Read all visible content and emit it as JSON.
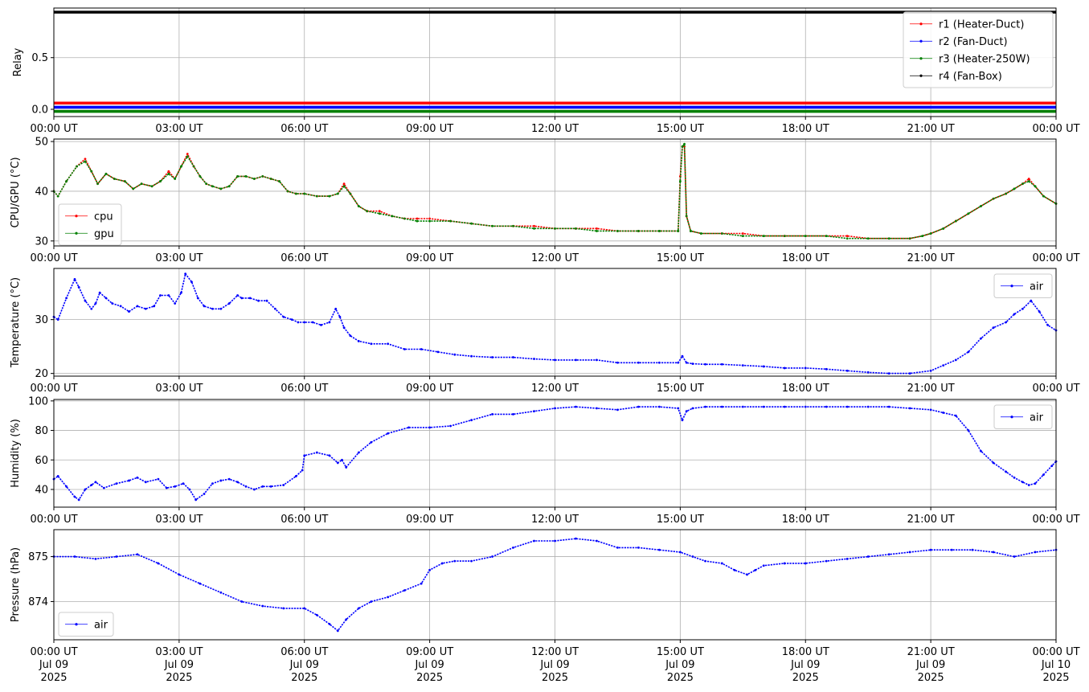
{
  "chart_data": [
    {
      "type": "line",
      "ylabel": "Relay",
      "xlabel": "",
      "xlim": [
        0,
        24
      ],
      "ylim": [
        -0.07,
        0.98
      ],
      "grid": true,
      "legend_position": "top-right",
      "x_tick_labels": [
        "00:00 UT",
        "03:00 UT",
        "06:00 UT",
        "09:00 UT",
        "12:00 UT",
        "15:00 UT",
        "18:00 UT",
        "21:00 UT",
        "00:00 UT"
      ],
      "y_ticks": [
        0.0,
        0.5
      ],
      "y_tick_labels": [
        "0.0",
        "0.5"
      ],
      "series": [
        {
          "name": "r1 (Heater-Duct)",
          "color": "#ff0000",
          "x": [
            0,
            24
          ],
          "y": [
            0.06,
            0.06
          ]
        },
        {
          "name": "r2 (Fan-Duct)",
          "color": "#0000ff",
          "x": [
            0,
            24
          ],
          "y": [
            0.02,
            0.02
          ]
        },
        {
          "name": "r3 (Heater-250W)",
          "color": "#008000",
          "x": [
            0,
            24
          ],
          "y": [
            -0.02,
            -0.02
          ]
        },
        {
          "name": "r4 (Fan-Box)",
          "color": "#000000",
          "x": [
            0,
            24
          ],
          "y": [
            0.94,
            0.94
          ]
        }
      ]
    },
    {
      "type": "line",
      "ylabel": "CPU/GPU (°C)",
      "xlabel": "",
      "xlim": [
        0,
        24
      ],
      "ylim": [
        29,
        50.5
      ],
      "grid": true,
      "legend_position": "bottom-left",
      "x_tick_labels": [
        "00:00 UT",
        "03:00 UT",
        "06:00 UT",
        "09:00 UT",
        "12:00 UT",
        "15:00 UT",
        "18:00 UT",
        "21:00 UT",
        "00:00 UT"
      ],
      "y_ticks": [
        30,
        40,
        50
      ],
      "y_tick_labels": [
        "30",
        "40",
        "50"
      ],
      "series": [
        {
          "name": "cpu",
          "color": "#ff0000",
          "x": [
            0,
            0.1,
            0.3,
            0.55,
            0.75,
            0.9,
            1.05,
            1.25,
            1.45,
            1.7,
            1.9,
            2.1,
            2.35,
            2.55,
            2.75,
            2.9,
            3.05,
            3.2,
            3.35,
            3.5,
            3.65,
            3.8,
            4.0,
            4.2,
            4.4,
            4.6,
            4.8,
            5.0,
            5.2,
            5.4,
            5.6,
            5.8,
            6.0,
            6.3,
            6.6,
            6.8,
            6.95,
            7.1,
            7.3,
            7.5,
            7.8,
            8.1,
            8.4,
            8.7,
            9.0,
            9.5,
            10.0,
            10.5,
            11.0,
            11.5,
            12.0,
            12.5,
            13.0,
            13.5,
            14.0,
            14.5,
            14.95,
            15.0,
            15.05,
            15.1,
            15.15,
            15.25,
            15.5,
            16.0,
            16.5,
            17.0,
            17.5,
            18.0,
            18.5,
            19.0,
            19.5,
            20.0,
            20.5,
            20.8,
            21.0,
            21.3,
            21.6,
            21.9,
            22.2,
            22.5,
            22.8,
            23.0,
            23.2,
            23.35,
            23.5,
            23.7,
            24.0
          ],
          "y": [
            40,
            39,
            42,
            45,
            46.5,
            44,
            41.5,
            43.5,
            42.5,
            42,
            40.5,
            41.5,
            41,
            42,
            44,
            42.5,
            45,
            47.5,
            45,
            43,
            41.5,
            41,
            40.5,
            41,
            43,
            43,
            42.5,
            43,
            42.5,
            42,
            40,
            39.5,
            39.5,
            39,
            39,
            39.5,
            41.5,
            39.5,
            37,
            36,
            36,
            35,
            34.5,
            34.5,
            34.5,
            34,
            33.5,
            33,
            33,
            33,
            32.5,
            32.5,
            32.5,
            32,
            32,
            32,
            32,
            43,
            49,
            49,
            35,
            32,
            31.5,
            31.5,
            31.5,
            31,
            31,
            31,
            31,
            31,
            30.5,
            30.5,
            30.5,
            31,
            31.5,
            32.5,
            34,
            35.5,
            37,
            38.5,
            39.5,
            40.5,
            41.5,
            42.5,
            41,
            39,
            37.5
          ]
        },
        {
          "name": "gpu",
          "color": "#008000",
          "x": [
            0,
            0.1,
            0.3,
            0.55,
            0.75,
            0.9,
            1.05,
            1.25,
            1.45,
            1.7,
            1.9,
            2.1,
            2.35,
            2.55,
            2.75,
            2.9,
            3.05,
            3.2,
            3.35,
            3.5,
            3.65,
            3.8,
            4.0,
            4.2,
            4.4,
            4.6,
            4.8,
            5.0,
            5.2,
            5.4,
            5.6,
            5.8,
            6.0,
            6.3,
            6.6,
            6.8,
            6.95,
            7.1,
            7.3,
            7.5,
            7.8,
            8.1,
            8.4,
            8.7,
            9.0,
            9.5,
            10.0,
            10.5,
            11.0,
            11.5,
            12.0,
            12.5,
            13.0,
            13.5,
            14.0,
            14.5,
            14.95,
            15.0,
            15.05,
            15.1,
            15.15,
            15.25,
            15.5,
            16.0,
            16.5,
            17.0,
            17.5,
            18.0,
            18.5,
            19.0,
            19.5,
            20.0,
            20.5,
            20.8,
            21.0,
            21.3,
            21.6,
            21.9,
            22.2,
            22.5,
            22.8,
            23.0,
            23.2,
            23.35,
            23.5,
            23.7,
            24.0
          ],
          "y": [
            40,
            39,
            42,
            45,
            46,
            44,
            41.5,
            43.5,
            42.5,
            42,
            40.5,
            41.5,
            41,
            42,
            43.5,
            42.5,
            45,
            47,
            45,
            43,
            41.5,
            41,
            40.5,
            41,
            43,
            43,
            42.5,
            43,
            42.5,
            42,
            40,
            39.5,
            39.5,
            39,
            39,
            39.5,
            41,
            39.5,
            37,
            36,
            35.5,
            35,
            34.5,
            34,
            34,
            34,
            33.5,
            33,
            33,
            32.5,
            32.5,
            32.5,
            32,
            32,
            32,
            32,
            32,
            42,
            49,
            49.5,
            35,
            32,
            31.5,
            31.5,
            31,
            31,
            31,
            31,
            31,
            30.5,
            30.5,
            30.5,
            30.5,
            31,
            31.5,
            32.5,
            34,
            35.5,
            37,
            38.5,
            39.5,
            40.5,
            41.5,
            42,
            41,
            39,
            37.5
          ]
        }
      ]
    },
    {
      "type": "line",
      "ylabel": "Temperature (°C)",
      "xlabel": "",
      "xlim": [
        0,
        24
      ],
      "ylim": [
        19.5,
        39.5
      ],
      "grid": true,
      "legend_position": "top-right",
      "x_tick_labels": [
        "00:00 UT",
        "03:00 UT",
        "06:00 UT",
        "09:00 UT",
        "12:00 UT",
        "15:00 UT",
        "18:00 UT",
        "21:00 UT",
        "00:00 UT"
      ],
      "y_ticks": [
        20,
        30
      ],
      "y_tick_labels": [
        "20",
        "30"
      ],
      "series": [
        {
          "name": "air",
          "color": "#0000ff",
          "x": [
            0,
            0.1,
            0.3,
            0.5,
            0.6,
            0.75,
            0.9,
            1.0,
            1.1,
            1.25,
            1.4,
            1.6,
            1.8,
            2.0,
            2.2,
            2.4,
            2.55,
            2.75,
            2.9,
            3.05,
            3.15,
            3.3,
            3.45,
            3.6,
            3.8,
            4.0,
            4.2,
            4.4,
            4.5,
            4.7,
            4.9,
            5.1,
            5.3,
            5.5,
            5.7,
            5.85,
            6.0,
            6.2,
            6.4,
            6.6,
            6.75,
            6.85,
            6.95,
            7.1,
            7.3,
            7.6,
            8.0,
            8.4,
            8.8,
            9.2,
            9.6,
            10.0,
            10.5,
            11.0,
            11.5,
            12.0,
            12.5,
            13.0,
            13.5,
            14.0,
            14.5,
            14.95,
            15.05,
            15.15,
            15.3,
            15.6,
            16.0,
            16.5,
            17.0,
            17.5,
            18.0,
            18.5,
            19.0,
            19.5,
            20.0,
            20.5,
            21.0,
            21.3,
            21.6,
            21.9,
            22.2,
            22.5,
            22.8,
            23.0,
            23.2,
            23.4,
            23.6,
            23.8,
            24.0
          ],
          "y": [
            30.5,
            30,
            34,
            37.5,
            36,
            33.5,
            32,
            33,
            35,
            34,
            33,
            32.5,
            31.5,
            32.5,
            32,
            32.5,
            34.5,
            34.5,
            33,
            35,
            38.5,
            37,
            34,
            32.5,
            32,
            32,
            33,
            34.5,
            34,
            34,
            33.5,
            33.5,
            32,
            30.5,
            30,
            29.5,
            29.5,
            29.5,
            29,
            29.5,
            32,
            30.5,
            28.5,
            27,
            26,
            25.5,
            25.5,
            24.5,
            24.5,
            24,
            23.5,
            23.2,
            23,
            23,
            22.7,
            22.5,
            22.5,
            22.5,
            22,
            22,
            22,
            22,
            23.2,
            22,
            21.8,
            21.7,
            21.7,
            21.5,
            21.3,
            21,
            21,
            20.8,
            20.5,
            20.2,
            20,
            20,
            20.5,
            21.5,
            22.5,
            24,
            26.5,
            28.5,
            29.5,
            31,
            32,
            33.5,
            31.5,
            29,
            28
          ]
        }
      ]
    },
    {
      "type": "line",
      "ylabel": "Humidity (%)",
      "xlabel": "",
      "xlim": [
        0,
        24
      ],
      "ylim": [
        28,
        101
      ],
      "grid": true,
      "legend_position": "top-right",
      "x_tick_labels": [
        "00:00 UT",
        "03:00 UT",
        "06:00 UT",
        "09:00 UT",
        "12:00 UT",
        "15:00 UT",
        "18:00 UT",
        "21:00 UT",
        "00:00 UT"
      ],
      "y_ticks": [
        40,
        60,
        80,
        100
      ],
      "y_tick_labels": [
        "40",
        "60",
        "80",
        "100"
      ],
      "series": [
        {
          "name": "air",
          "color": "#0000ff",
          "x": [
            0,
            0.1,
            0.3,
            0.5,
            0.6,
            0.75,
            0.9,
            1.0,
            1.2,
            1.5,
            1.8,
            2.0,
            2.2,
            2.5,
            2.7,
            2.9,
            3.1,
            3.25,
            3.4,
            3.6,
            3.8,
            4.0,
            4.2,
            4.4,
            4.6,
            4.8,
            5.0,
            5.2,
            5.5,
            5.8,
            5.95,
            6.0,
            6.3,
            6.6,
            6.8,
            6.9,
            7.0,
            7.3,
            7.6,
            8.0,
            8.5,
            9.0,
            9.5,
            10.0,
            10.5,
            11.0,
            11.5,
            12.0,
            12.5,
            13.0,
            13.5,
            14.0,
            14.5,
            14.95,
            15.05,
            15.15,
            15.3,
            15.6,
            16.0,
            16.5,
            17.0,
            17.5,
            18.0,
            18.5,
            19.0,
            19.5,
            20.0,
            20.5,
            21.0,
            21.3,
            21.6,
            21.9,
            22.2,
            22.5,
            22.8,
            23.0,
            23.2,
            23.35,
            23.5,
            23.7,
            23.9,
            24.0
          ],
          "y": [
            47,
            49,
            42,
            35,
            33,
            40,
            43,
            45,
            41,
            44,
            46,
            48,
            45,
            47,
            41,
            42,
            44,
            40,
            33,
            37,
            44,
            46,
            47,
            45,
            42,
            40,
            42,
            42,
            43,
            49,
            53,
            63,
            65,
            63,
            58,
            60,
            55,
            65,
            72,
            78,
            82,
            82,
            83,
            87,
            91,
            91,
            93,
            95,
            96,
            95,
            94,
            96,
            96,
            95,
            87,
            93,
            95,
            96,
            96,
            96,
            96,
            96,
            96,
            96,
            96,
            96,
            96,
            95,
            94,
            92,
            90,
            80,
            66,
            58,
            52,
            48,
            45,
            43,
            44,
            50,
            56,
            59
          ]
        }
      ]
    },
    {
      "type": "line",
      "ylabel": "Pressure (hPa)",
      "xlabel": "",
      "xlim": [
        0,
        24
      ],
      "ylim": [
        873.15,
        875.6
      ],
      "grid": true,
      "legend_position": "bottom-left",
      "x_tick_labels": [
        "00:00 UT\nJul 09\n2025",
        "03:00 UT\nJul 09\n2025",
        "06:00 UT\nJul 09\n2025",
        "09:00 UT\nJul 09\n2025",
        "12:00 UT\nJul 09\n2025",
        "15:00 UT\nJul 09\n2025",
        "18:00 UT\nJul 09\n2025",
        "21:00 UT\nJul 09\n2025",
        "00:00 UT\nJul 10\n2025"
      ],
      "y_ticks": [
        874,
        875
      ],
      "y_tick_labels": [
        "874",
        "875"
      ],
      "series": [
        {
          "name": "air",
          "color": "#0000ff",
          "x": [
            0,
            0.5,
            1.0,
            1.5,
            2.0,
            2.5,
            3.0,
            3.5,
            4.0,
            4.5,
            5.0,
            5.5,
            6.0,
            6.3,
            6.6,
            6.8,
            7.0,
            7.3,
            7.6,
            8.0,
            8.4,
            8.8,
            9.0,
            9.3,
            9.6,
            10.0,
            10.5,
            11.0,
            11.5,
            12.0,
            12.5,
            13.0,
            13.5,
            14.0,
            14.5,
            15.0,
            15.3,
            15.6,
            16.0,
            16.3,
            16.6,
            16.8,
            17.0,
            17.5,
            18.0,
            18.5,
            19.0,
            19.5,
            20.0,
            20.5,
            21.0,
            21.5,
            22.0,
            22.5,
            23.0,
            23.5,
            24.0
          ],
          "y": [
            875.0,
            875.0,
            874.95,
            875.0,
            875.05,
            874.85,
            874.6,
            874.4,
            874.2,
            874.0,
            873.9,
            873.85,
            873.85,
            873.7,
            873.5,
            873.35,
            873.6,
            873.85,
            874.0,
            874.1,
            874.25,
            874.4,
            874.7,
            874.85,
            874.9,
            874.9,
            875.0,
            875.2,
            875.35,
            875.35,
            875.4,
            875.35,
            875.2,
            875.2,
            875.15,
            875.1,
            875.0,
            874.9,
            874.85,
            874.7,
            874.6,
            874.7,
            874.8,
            874.85,
            874.85,
            874.9,
            874.95,
            875.0,
            875.05,
            875.1,
            875.15,
            875.15,
            875.15,
            875.1,
            875.0,
            875.1,
            875.15
          ]
        }
      ]
    }
  ]
}
